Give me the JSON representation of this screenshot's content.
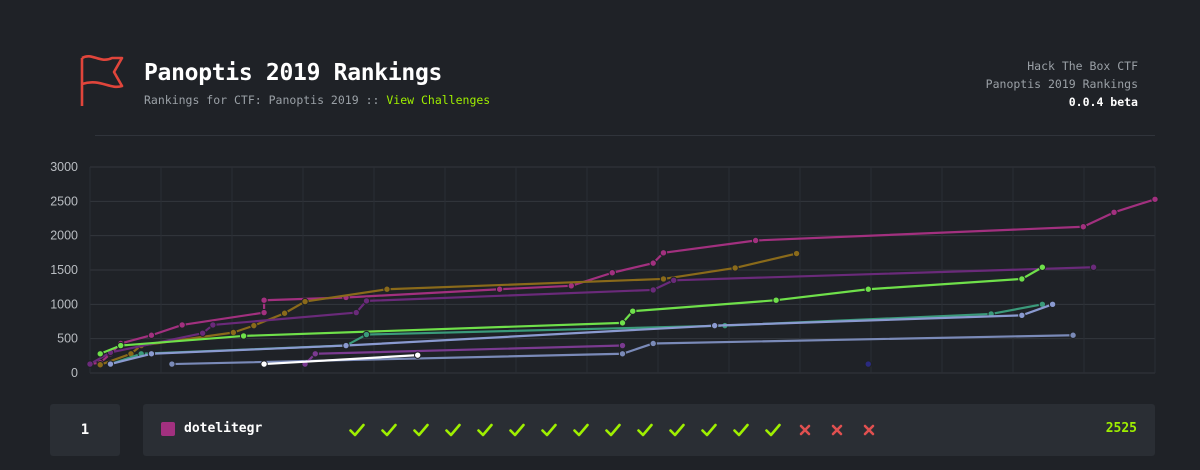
{
  "header": {
    "title": "Panoptis 2019 Rankings",
    "subtitle_prefix": "Rankings for CTF: Panoptis 2019",
    "subtitle_sep": "::",
    "view_challenges": "View Challenges",
    "meta_line1": "Hack The Box CTF",
    "meta_line2": "Panoptis 2019 Rankings",
    "version": "0.0.4 beta"
  },
  "colors": {
    "accent_green": "#9fef00",
    "flag_red": "#e0453b",
    "team_color": "#a2307f",
    "fail_red": "#e05050"
  },
  "chart_data": {
    "type": "line",
    "xlabel": "",
    "ylabel": "",
    "ylim": [
      0,
      3000
    ],
    "y_ticks": [
      "0",
      "500",
      "1000",
      "1500",
      "2000",
      "2500",
      "3000"
    ],
    "grid": true,
    "series": [
      {
        "color": "#a2307f",
        "points": [
          [
            0.0,
            130
          ],
          [
            0.01,
            150
          ],
          [
            0.02,
            280
          ],
          [
            0.03,
            430
          ],
          [
            0.06,
            550
          ],
          [
            0.09,
            700
          ],
          [
            0.17,
            880
          ],
          [
            0.17,
            1060
          ],
          [
            0.25,
            1100
          ],
          [
            0.4,
            1220
          ],
          [
            0.47,
            1270
          ],
          [
            0.51,
            1460
          ],
          [
            0.55,
            1600
          ],
          [
            0.56,
            1750
          ],
          [
            0.65,
            1930
          ],
          [
            0.97,
            2130
          ],
          [
            1.0,
            2340
          ],
          [
            1.04,
            2530
          ]
        ]
      },
      {
        "color": "#8a6a1a",
        "points": [
          [
            0.01,
            120
          ],
          [
            0.04,
            280
          ],
          [
            0.05,
            400
          ],
          [
            0.14,
            590
          ],
          [
            0.16,
            690
          ],
          [
            0.19,
            870
          ],
          [
            0.21,
            1040
          ],
          [
            0.29,
            1220
          ],
          [
            0.56,
            1370
          ],
          [
            0.63,
            1530
          ],
          [
            0.69,
            1740
          ]
        ]
      },
      {
        "color": "#6a2a7a",
        "points": [
          [
            0.0,
            130
          ],
          [
            0.02,
            300
          ],
          [
            0.11,
            580
          ],
          [
            0.12,
            700
          ],
          [
            0.26,
            880
          ],
          [
            0.27,
            1050
          ],
          [
            0.55,
            1210
          ],
          [
            0.57,
            1350
          ],
          [
            0.98,
            1540
          ]
        ]
      },
      {
        "color": "#6fe04a",
        "points": [
          [
            0.01,
            280
          ],
          [
            0.03,
            400
          ],
          [
            0.15,
            540
          ],
          [
            0.52,
            730
          ],
          [
            0.53,
            900
          ],
          [
            0.67,
            1060
          ],
          [
            0.76,
            1220
          ],
          [
            0.91,
            1370
          ],
          [
            0.93,
            1540
          ]
        ]
      },
      {
        "color": "#3a9a7a",
        "points": [
          [
            0.02,
            130
          ],
          [
            0.05,
            280
          ],
          [
            0.25,
            400
          ],
          [
            0.27,
            560
          ],
          [
            0.62,
            690
          ],
          [
            0.88,
            860
          ],
          [
            0.93,
            1000
          ]
        ]
      },
      {
        "color": "#8a9ad0",
        "points": [
          [
            0.02,
            130
          ],
          [
            0.06,
            280
          ],
          [
            0.25,
            400
          ],
          [
            0.61,
            690
          ],
          [
            0.91,
            840
          ],
          [
            0.94,
            1000
          ]
        ]
      },
      {
        "color": "#7a8ab8",
        "points": [
          [
            0.08,
            130
          ],
          [
            0.52,
            280
          ],
          [
            0.55,
            430
          ],
          [
            0.96,
            550
          ]
        ]
      },
      {
        "color": "#7a3a90",
        "points": [
          [
            0.21,
            130
          ],
          [
            0.22,
            280
          ],
          [
            0.52,
            400
          ]
        ]
      },
      {
        "color": "#ffffff",
        "points": [
          [
            0.17,
            130
          ],
          [
            0.32,
            260
          ]
        ]
      },
      {
        "color": "#2a2a80",
        "points": [
          [
            0.76,
            130
          ]
        ]
      }
    ]
  },
  "ranking": {
    "rank": "1",
    "team_name": "dotelitegr",
    "score": "2525",
    "challenges": [
      "solved",
      "solved",
      "solved",
      "solved",
      "solved",
      "solved",
      "solved",
      "solved",
      "solved",
      "solved",
      "solved",
      "solved",
      "solved",
      "solved",
      "failed",
      "failed",
      "failed"
    ]
  }
}
